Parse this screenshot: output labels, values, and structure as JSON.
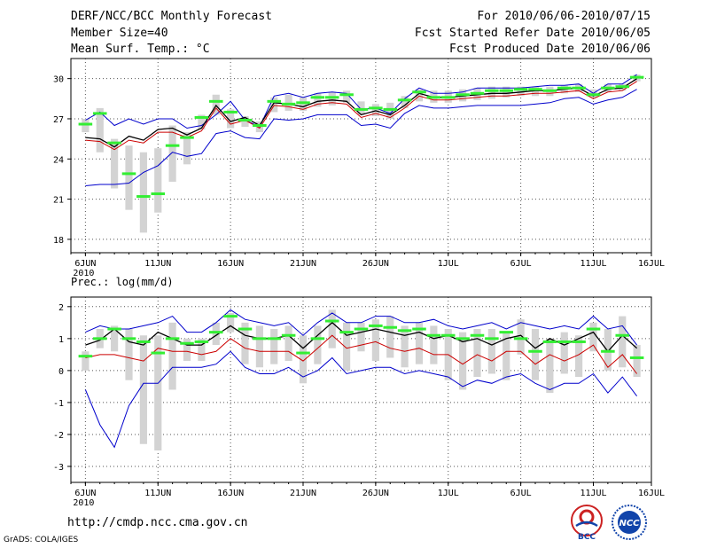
{
  "header": {
    "title": "DERF/NCC/BCC Monthly Forecast",
    "member": "Member Size=40",
    "variable": "Mean Surf. Temp.: °C",
    "period": "For 2010/06/06-2010/07/15",
    "refer": "Fcst Started Refer Date 2010/06/05",
    "produced": "Fcst Produced Date 2010/06/06"
  },
  "footer": {
    "url": "http://cmdp.ncc.cma.gov.cn",
    "grads": "GrADS: COLA/IGES",
    "logo_bcc": "BCC",
    "logo_ncc": "NCC"
  },
  "colors": {
    "box": "#d3d3d3",
    "median": "#33ee33",
    "mean": "#000000",
    "central": "#cc0000",
    "range": "#0000cc",
    "grid": "#555555"
  },
  "chart_data": [
    {
      "type": "box-line",
      "title": "",
      "ylabel": "Mean Surf. Temp.: °C",
      "ylim": [
        17,
        31.5
      ],
      "yticks": [
        18,
        21,
        24,
        27,
        30
      ],
      "xlim": [
        0,
        40
      ],
      "xticks": [
        {
          "x": 1,
          "label": "6JUN",
          "sub": "2010"
        },
        {
          "x": 6,
          "label": "11JUN"
        },
        {
          "x": 11,
          "label": "16JUN"
        },
        {
          "x": 16,
          "label": "21JUN"
        },
        {
          "x": 21,
          "label": "26JUN"
        },
        {
          "x": 26,
          "label": "1JUL"
        },
        {
          "x": 31,
          "label": "6JUL"
        },
        {
          "x": 36,
          "label": "11JUL"
        },
        {
          "x": 40,
          "label": "16JUL"
        }
      ],
      "days": [
        1,
        2,
        3,
        4,
        5,
        6,
        7,
        8,
        9,
        10,
        11,
        12,
        13,
        14,
        15,
        16,
        17,
        18,
        19,
        20,
        21,
        22,
        23,
        24,
        25,
        26,
        27,
        28,
        29,
        30,
        31,
        32,
        33,
        34,
        35,
        36,
        37,
        38,
        39
      ],
      "box_low": [
        26.0,
        24.5,
        21.8,
        20.2,
        18.5,
        20.0,
        22.3,
        23.6,
        26.2,
        27.3,
        26.3,
        26.4,
        26.0,
        27.5,
        27.6,
        27.6,
        27.9,
        28.0,
        28.2,
        27.3,
        27.2,
        27.0,
        27.8,
        28.3,
        28.2,
        28.2,
        28.3,
        28.4,
        28.5,
        28.6,
        28.7,
        28.7,
        28.7,
        28.9,
        29.0,
        28.6,
        29.0,
        29.1,
        29.8
      ],
      "box_high": [
        27.0,
        27.8,
        25.5,
        25.0,
        24.5,
        24.8,
        26.5,
        26.0,
        27.3,
        28.8,
        27.7,
        27.2,
        26.8,
        28.6,
        28.8,
        28.6,
        28.9,
        29.0,
        29.1,
        28.3,
        28.1,
        28.2,
        28.7,
        29.2,
        29.1,
        29.1,
        29.2,
        29.3,
        29.4,
        29.4,
        29.4,
        29.4,
        29.4,
        29.5,
        29.6,
        29.2,
        29.6,
        29.6,
        30.3
      ],
      "median": [
        26.6,
        27.4,
        25.2,
        22.9,
        21.2,
        21.4,
        25.0,
        25.6,
        27.1,
        28.3,
        27.5,
        26.9,
        26.5,
        28.3,
        28.1,
        28.2,
        28.6,
        28.6,
        28.8,
        27.7,
        27.8,
        27.7,
        28.4,
        29.0,
        28.6,
        28.6,
        28.8,
        28.9,
        29.1,
        29.1,
        29.2,
        29.2,
        29.1,
        29.3,
        29.3,
        28.8,
        29.3,
        29.4,
        30.1
      ],
      "max": [
        26.9,
        27.5,
        26.5,
        27.0,
        26.6,
        27.0,
        27.0,
        26.3,
        26.5,
        27.3,
        28.3,
        26.9,
        26.4,
        28.7,
        28.9,
        28.6,
        28.9,
        29.0,
        28.9,
        27.7,
        27.8,
        27.4,
        28.5,
        29.3,
        28.9,
        28.9,
        29.0,
        29.3,
        29.3,
        29.3,
        29.3,
        29.4,
        29.5,
        29.5,
        29.6,
        28.9,
        29.6,
        29.6,
        30.3
      ],
      "mean": [
        25.6,
        25.5,
        24.9,
        25.7,
        25.4,
        26.2,
        26.3,
        25.8,
        26.3,
        28.0,
        26.8,
        27.1,
        26.5,
        28.2,
        28.1,
        27.9,
        28.3,
        28.4,
        28.3,
        27.3,
        27.6,
        27.3,
        28.0,
        28.9,
        28.6,
        28.6,
        28.7,
        28.8,
        28.9,
        28.9,
        29.0,
        29.1,
        29.1,
        29.2,
        29.3,
        28.7,
        29.2,
        29.3,
        30.0
      ],
      "central": [
        25.4,
        25.3,
        24.7,
        25.4,
        25.2,
        26.0,
        26.0,
        25.6,
        26.1,
        27.8,
        26.6,
        26.9,
        26.3,
        28.0,
        27.9,
        27.7,
        28.1,
        28.2,
        28.1,
        27.1,
        27.4,
        27.1,
        27.8,
        28.7,
        28.4,
        28.4,
        28.5,
        28.6,
        28.7,
        28.7,
        28.8,
        28.9,
        28.9,
        29.0,
        29.1,
        28.5,
        29.0,
        29.1,
        29.8
      ],
      "min": [
        22.0,
        22.1,
        22.1,
        22.2,
        23.0,
        23.5,
        24.5,
        24.2,
        24.4,
        25.9,
        26.1,
        25.6,
        25.5,
        27.0,
        26.9,
        27.0,
        27.3,
        27.3,
        27.3,
        26.5,
        26.6,
        26.3,
        27.4,
        28.0,
        27.8,
        27.8,
        27.9,
        28.0,
        28.0,
        28.0,
        28.0,
        28.1,
        28.2,
        28.5,
        28.6,
        28.1,
        28.4,
        28.6,
        29.2
      ]
    },
    {
      "type": "box-line",
      "title": "Prec.: log(mm/d)",
      "ylabel": "Prec.: log(mm/d)",
      "ylim": [
        -3.5,
        2.3
      ],
      "yticks": [
        -3,
        -2,
        -1,
        0,
        1,
        2
      ],
      "xlim": [
        0,
        40
      ],
      "xticks": [
        {
          "x": 1,
          "label": "6JUN",
          "sub": "2010"
        },
        {
          "x": 6,
          "label": "11JUN"
        },
        {
          "x": 11,
          "label": "16JUN"
        },
        {
          "x": 16,
          "label": "21JUN"
        },
        {
          "x": 21,
          "label": "26JUN"
        },
        {
          "x": 26,
          "label": "1JUL"
        },
        {
          "x": 31,
          "label": "6JUL"
        },
        {
          "x": 36,
          "label": "11JUL"
        },
        {
          "x": 40,
          "label": "16JUL"
        }
      ],
      "days": [
        1,
        2,
        3,
        4,
        5,
        6,
        7,
        8,
        9,
        10,
        11,
        12,
        13,
        14,
        15,
        16,
        17,
        18,
        19,
        20,
        21,
        22,
        23,
        24,
        25,
        26,
        27,
        28,
        29,
        30,
        31,
        32,
        33,
        34,
        35,
        36,
        37,
        38,
        39
      ],
      "box_low": [
        0.0,
        0.7,
        0.6,
        -0.3,
        -2.3,
        -2.5,
        -0.6,
        0.3,
        0.3,
        0.8,
        1.2,
        0.2,
        0.1,
        0.2,
        0.3,
        -0.4,
        0.2,
        0.7,
        0.0,
        0.6,
        0.3,
        0.4,
        0.1,
        0.2,
        0.2,
        -0.3,
        -0.6,
        -0.2,
        -0.1,
        -0.3,
        0.5,
        -0.3,
        -0.7,
        -0.1,
        -0.2,
        0.6,
        0.0,
        0.1,
        -0.2
      ],
      "box_high": [
        0.6,
        1.3,
        1.4,
        1.3,
        1.1,
        1.1,
        1.5,
        1.0,
        1.0,
        1.5,
        1.8,
        1.5,
        1.4,
        1.3,
        1.4,
        1.1,
        1.4,
        1.9,
        1.5,
        1.5,
        1.6,
        1.7,
        1.4,
        1.5,
        1.4,
        1.3,
        1.2,
        1.3,
        1.3,
        1.2,
        1.6,
        1.3,
        1.0,
        1.2,
        1.1,
        1.5,
        1.3,
        1.7,
        0.8
      ],
      "median": [
        0.45,
        1.0,
        1.3,
        1.0,
        0.9,
        0.55,
        1.0,
        0.85,
        0.9,
        1.2,
        1.7,
        1.3,
        1.0,
        1.0,
        1.1,
        0.55,
        1.0,
        1.55,
        1.2,
        1.3,
        1.4,
        1.35,
        1.25,
        1.3,
        1.1,
        1.1,
        1.0,
        1.1,
        1.0,
        1.2,
        1.0,
        0.6,
        0.9,
        0.9,
        0.9,
        1.3,
        0.6,
        1.1,
        0.4
      ],
      "max": [
        1.2,
        1.4,
        1.3,
        1.3,
        1.4,
        1.5,
        1.7,
        1.2,
        1.2,
        1.5,
        1.9,
        1.6,
        1.5,
        1.4,
        1.5,
        1.1,
        1.5,
        1.8,
        1.5,
        1.5,
        1.7,
        1.7,
        1.5,
        1.5,
        1.6,
        1.4,
        1.3,
        1.4,
        1.5,
        1.3,
        1.5,
        1.4,
        1.3,
        1.4,
        1.3,
        1.7,
        1.3,
        1.4,
        0.8
      ],
      "mean": [
        0.8,
        0.95,
        1.3,
        0.9,
        0.8,
        1.2,
        1.0,
        0.8,
        0.8,
        1.1,
        1.4,
        1.1,
        1.0,
        1.0,
        1.1,
        0.7,
        1.1,
        1.5,
        1.1,
        1.2,
        1.3,
        1.2,
        1.1,
        1.2,
        1.0,
        1.1,
        0.9,
        1.0,
        0.8,
        1.0,
        1.1,
        0.7,
        1.0,
        0.8,
        1.0,
        1.2,
        0.6,
        1.1,
        0.7
      ],
      "central": [
        0.4,
        0.5,
        0.5,
        0.4,
        0.3,
        0.7,
        0.6,
        0.6,
        0.5,
        0.6,
        1.0,
        0.7,
        0.6,
        0.6,
        0.6,
        0.3,
        0.7,
        1.1,
        0.7,
        0.8,
        0.9,
        0.7,
        0.6,
        0.7,
        0.5,
        0.5,
        0.2,
        0.5,
        0.3,
        0.6,
        0.6,
        0.2,
        0.5,
        0.3,
        0.5,
        0.8,
        0.1,
        0.5,
        -0.1
      ],
      "min": [
        -0.6,
        -1.7,
        -2.4,
        -1.1,
        -0.4,
        -0.4,
        0.1,
        0.1,
        0.1,
        0.2,
        0.6,
        0.1,
        -0.1,
        -0.1,
        0.1,
        -0.2,
        0.0,
        0.4,
        -0.1,
        0.0,
        0.1,
        0.1,
        -0.1,
        0.0,
        -0.1,
        -0.2,
        -0.5,
        -0.3,
        -0.4,
        -0.2,
        -0.1,
        -0.4,
        -0.6,
        -0.4,
        -0.4,
        -0.1,
        -0.7,
        -0.2,
        -0.8
      ]
    }
  ]
}
